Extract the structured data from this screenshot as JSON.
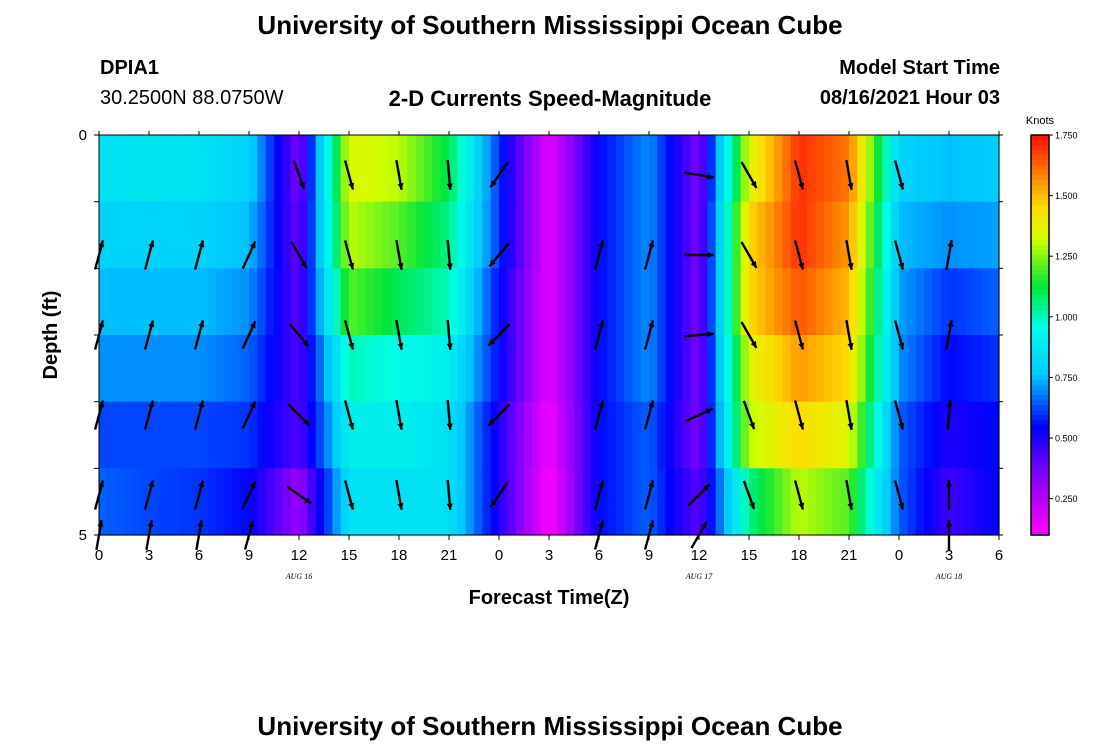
{
  "header": {
    "title": "University of Southern Mississippi Ocean Cube",
    "station_id": "DPIA1",
    "station_coords": "30.2500N  88.0750W",
    "chart_title": "2-D Currents Speed-Magnitude",
    "model_start_label": "Model Start Time",
    "model_start_value": "08/16/2021 Hour 03"
  },
  "footer": {
    "title": "University of Southern Mississippi Ocean Cube"
  },
  "chart_data": {
    "type": "heatmap",
    "title": "2-D Currents Speed-Magnitude",
    "xlabel": "Forecast Time(Z)",
    "ylabel": "Depth (ft)",
    "x_tick_labels": [
      "0",
      "3",
      "6",
      "9",
      "12",
      "15",
      "18",
      "21",
      "0",
      "3",
      "6",
      "9",
      "12",
      "15",
      "18",
      "21",
      "0",
      "3",
      "6"
    ],
    "y_tick_labels": [
      "0",
      "5"
    ],
    "ylim": [
      0,
      5
    ],
    "date_labels": [
      {
        "label": "AUG 16",
        "at_hour": 12
      },
      {
        "label": "AUG 17",
        "at_hour": 36
      },
      {
        "label": "AUG 18",
        "at_hour": 51
      }
    ],
    "colorbar": {
      "unit": "Knots",
      "ticks": [
        "1.750",
        "1.500",
        "1.250",
        "1.000",
        "0.750",
        "0.500",
        "0.250"
      ],
      "range": [
        0.1,
        1.75
      ]
    },
    "hours": [
      0,
      3,
      6,
      9,
      12,
      15,
      18,
      21,
      24,
      27,
      30,
      33,
      36,
      39,
      42,
      45,
      48,
      51,
      54
    ],
    "speed_rows_knots": [
      [
        0.85,
        0.87,
        0.85,
        0.8,
        0.35,
        1.35,
        1.3,
        1.1,
        0.6,
        0.15,
        0.55,
        0.7,
        0.35,
        1.35,
        1.7,
        1.6,
        0.8,
        0.75,
        0.78
      ],
      [
        0.8,
        0.8,
        0.8,
        0.75,
        0.38,
        1.3,
        1.2,
        1.05,
        0.6,
        0.15,
        0.55,
        0.7,
        0.35,
        1.45,
        1.7,
        1.55,
        0.75,
        0.7,
        0.72
      ],
      [
        0.75,
        0.75,
        0.75,
        0.7,
        0.4,
        1.2,
        1.1,
        1.0,
        0.55,
        0.15,
        0.55,
        0.7,
        0.35,
        1.45,
        1.65,
        1.5,
        0.72,
        0.6,
        0.65
      ],
      [
        0.7,
        0.7,
        0.7,
        0.65,
        0.42,
        1.0,
        0.95,
        0.9,
        0.55,
        0.15,
        0.55,
        0.7,
        0.35,
        1.35,
        1.55,
        1.45,
        0.7,
        0.55,
        0.6
      ],
      [
        0.62,
        0.62,
        0.62,
        0.6,
        0.42,
        0.9,
        0.9,
        0.85,
        0.5,
        0.12,
        0.55,
        0.65,
        0.35,
        1.3,
        1.45,
        1.35,
        0.65,
        0.5,
        0.55
      ],
      [
        0.65,
        0.62,
        0.6,
        0.55,
        0.3,
        0.85,
        0.85,
        0.85,
        0.5,
        0.1,
        0.55,
        0.65,
        0.4,
        1.05,
        1.3,
        1.2,
        0.65,
        0.45,
        0.55
      ]
    ],
    "vectors": [
      {
        "depth_row": 0.5,
        "angles_deg": [
          null,
          null,
          null,
          null,
          160,
          165,
          170,
          175,
          215,
          null,
          null,
          null,
          100,
          150,
          165,
          170,
          165,
          null,
          null
        ]
      },
      {
        "depth_row": 1.5,
        "angles_deg": [
          15,
          15,
          15,
          25,
          150,
          165,
          170,
          175,
          220,
          null,
          15,
          15,
          90,
          150,
          165,
          170,
          165,
          10,
          null
        ]
      },
      {
        "depth_row": 2.5,
        "angles_deg": [
          15,
          15,
          15,
          25,
          140,
          165,
          170,
          175,
          225,
          null,
          15,
          15,
          85,
          150,
          165,
          170,
          165,
          10,
          null
        ]
      },
      {
        "depth_row": 3.5,
        "angles_deg": [
          15,
          15,
          15,
          25,
          135,
          165,
          170,
          175,
          225,
          null,
          15,
          15,
          65,
          160,
          165,
          170,
          165,
          5,
          null
        ]
      },
      {
        "depth_row": 4.5,
        "angles_deg": [
          15,
          15,
          15,
          25,
          125,
          165,
          170,
          175,
          215,
          null,
          15,
          15,
          45,
          160,
          165,
          170,
          165,
          0,
          null
        ]
      },
      {
        "depth_row": 5.0,
        "angles_deg": [
          10,
          10,
          10,
          15,
          null,
          null,
          null,
          null,
          null,
          null,
          15,
          15,
          30,
          null,
          null,
          null,
          null,
          0,
          null
        ]
      }
    ]
  }
}
